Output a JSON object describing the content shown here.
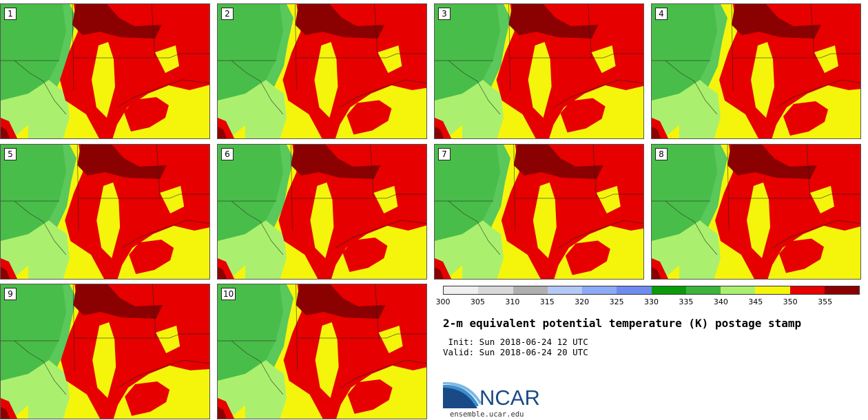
{
  "stamps": [
    {
      "label": "1"
    },
    {
      "label": "2"
    },
    {
      "label": "3"
    },
    {
      "label": "4"
    },
    {
      "label": "5"
    },
    {
      "label": "6"
    },
    {
      "label": "7"
    },
    {
      "label": "8"
    },
    {
      "label": "9"
    },
    {
      "label": "10"
    }
  ],
  "legend": {
    "ticks": [
      "300",
      "305",
      "310",
      "315",
      "320",
      "325",
      "330",
      "335",
      "340",
      "345",
      "350",
      "355"
    ],
    "colors": [
      "#f0f0f0",
      "#d9d9d9",
      "#afafaf",
      "#b4c8f5",
      "#8caaf5",
      "#6e8cf0",
      "#0a9b0a",
      "#3cb43c",
      "#aaf06e",
      "#f5f50c",
      "#e60000",
      "#8b0000"
    ]
  },
  "title": "2-m equivalent potential temperature (K) postage stamp",
  "init": " Init: Sun 2018-06-24 12 UTC",
  "valid": "Valid: Sun 2018-06-24 20 UTC",
  "logo": {
    "text": "NCAR",
    "url": "ensemble.ucar.edu",
    "colors": [
      "#1a4a86",
      "#3a8fd0"
    ]
  },
  "map_colors": {
    "dark_green": "#3cb43c",
    "green": "#5ac85a",
    "light_green": "#aaf06e",
    "yellow": "#f5f50c",
    "red": "#e60000",
    "dark_red": "#8b0000",
    "blue": "#6e8cf0"
  }
}
